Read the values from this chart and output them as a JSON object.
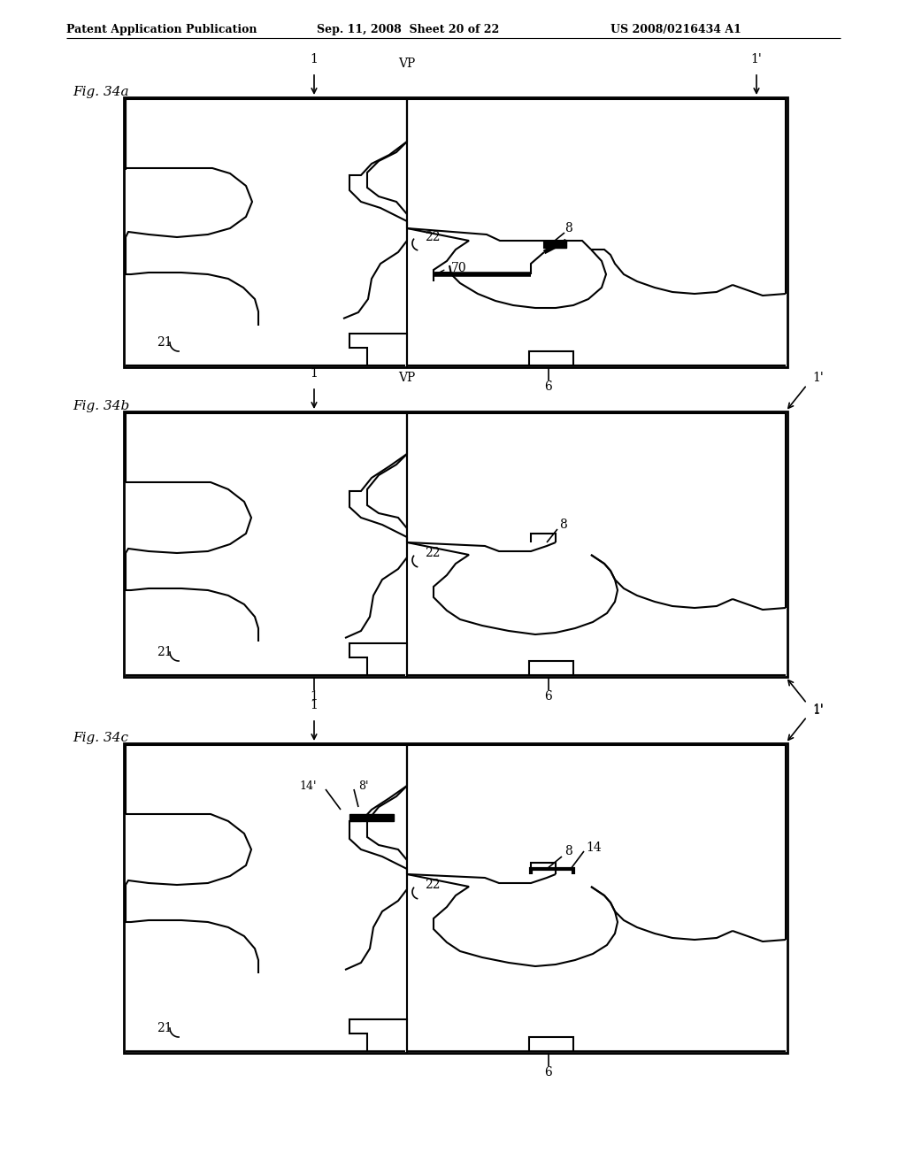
{
  "header_left": "Patent Application Publication",
  "header_mid": "Sep. 11, 2008  Sheet 20 of 22",
  "header_right": "US 2008/0216434 A1",
  "background_color": "#ffffff",
  "line_color": "#000000"
}
